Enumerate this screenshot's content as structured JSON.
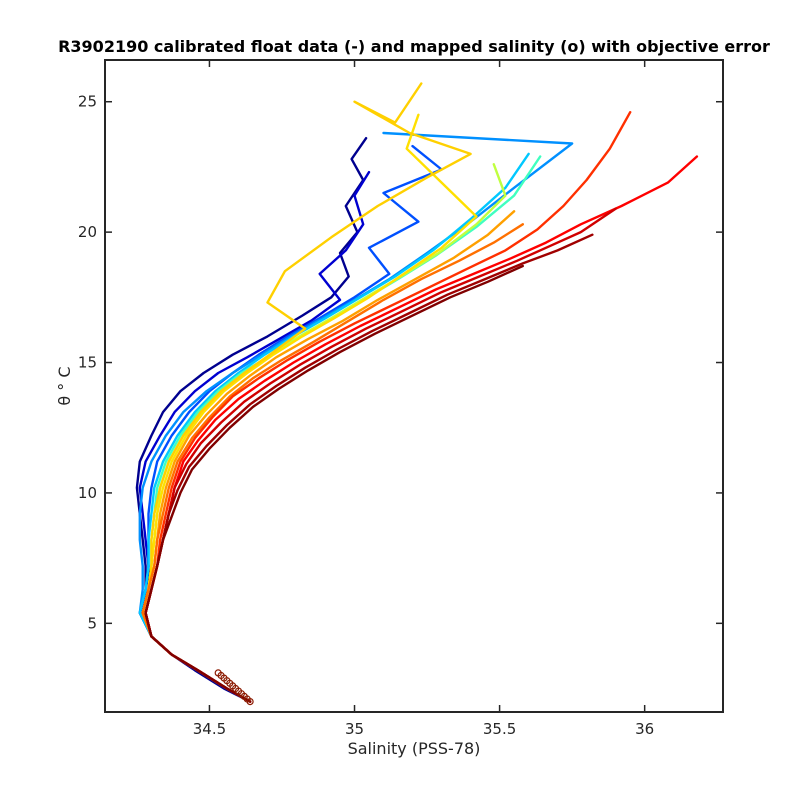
{
  "chart_data": {
    "type": "line",
    "title": "R3902190 calibrated float data (-) and mapped salinity (o) with objective error",
    "xlabel": "Salinity (PSS-78)",
    "ylabel": "θ ° C",
    "xlim": [
      34.14,
      36.27
    ],
    "ylim": [
      1.6,
      26.6
    ],
    "xticks": [
      34.5,
      35,
      35.5,
      36
    ],
    "xtick_labels": [
      "34.5",
      "35",
      "35.5",
      "36"
    ],
    "yticks": [
      5,
      10,
      15,
      20,
      25
    ],
    "ytick_labels": [
      "5",
      "10",
      "15",
      "20",
      "25"
    ],
    "grid": false,
    "legend": "none",
    "colormap": "jet (cycle number: blue = early, red = late)",
    "series": [
      {
        "color": "#00008f",
        "x": [
          34.64,
          34.55,
          34.45,
          34.37,
          34.3,
          34.26,
          34.28,
          34.28,
          34.27,
          34.26,
          34.25,
          34.26,
          34.3,
          34.34,
          34.4,
          34.48,
          34.58,
          34.7,
          34.82,
          34.92,
          34.98,
          34.95,
          35.01,
          34.97,
          35.03,
          34.99,
          35.04
        ],
        "y": [
          2,
          2.5,
          3.2,
          3.8,
          4.5,
          5.4,
          6.3,
          7.2,
          8.2,
          9.2,
          10.2,
          11.2,
          12.2,
          13.1,
          13.9,
          14.6,
          15.3,
          16,
          16.8,
          17.5,
          18.3,
          19.2,
          20,
          21,
          22,
          22.8,
          23.6
        ]
      },
      {
        "color": "#0000d0",
        "x": [
          34.64,
          34.56,
          34.46,
          34.37,
          34.3,
          34.26,
          34.29,
          34.29,
          34.28,
          34.27,
          34.26,
          34.28,
          34.33,
          34.38,
          34.45,
          34.53,
          34.63,
          34.74,
          34.85,
          34.95,
          34.88,
          34.97,
          35.03,
          35.0,
          35.05
        ],
        "y": [
          2,
          2.5,
          3.2,
          3.8,
          4.5,
          5.4,
          6.3,
          7.2,
          8.2,
          9.2,
          10.2,
          11.2,
          12.2,
          13.1,
          13.9,
          14.6,
          15.2,
          15.9,
          16.6,
          17.4,
          18.4,
          19.3,
          20.3,
          21.4,
          22.3
        ]
      },
      {
        "color": "#0050ff",
        "x": [
          34.64,
          34.56,
          34.46,
          34.37,
          34.3,
          34.26,
          34.28,
          34.29,
          34.29,
          34.29,
          34.3,
          34.32,
          34.37,
          34.43,
          34.5,
          34.58,
          34.67,
          34.77,
          34.88,
          35.0,
          35.12,
          35.05,
          35.22,
          35.1,
          35.3,
          35.2
        ],
        "y": [
          2,
          2.5,
          3.2,
          3.8,
          4.5,
          5.4,
          6.3,
          7.2,
          8.2,
          9.2,
          10.2,
          11.2,
          12.2,
          13.1,
          13.9,
          14.6,
          15.3,
          16,
          16.7,
          17.5,
          18.4,
          19.4,
          20.4,
          21.5,
          22.4,
          23.3
        ]
      },
      {
        "color": "#0090ff",
        "x": [
          34.64,
          34.56,
          34.46,
          34.37,
          34.3,
          34.26,
          34.27,
          34.27,
          34.26,
          34.26,
          34.27,
          34.3,
          34.35,
          34.41,
          34.49,
          34.58,
          34.68,
          34.78,
          34.89,
          35.0,
          35.12,
          35.25,
          35.4,
          35.55,
          35.75,
          35.1
        ],
        "y": [
          2,
          2.5,
          3.2,
          3.8,
          4.5,
          5.4,
          6.3,
          7.2,
          8.2,
          9.2,
          10.2,
          11.2,
          12.2,
          13.1,
          13.9,
          14.6,
          15.3,
          16,
          16.7,
          17.4,
          18.2,
          19.2,
          20.4,
          21.7,
          23.4,
          23.8
        ]
      },
      {
        "color": "#00c8ff",
        "x": [
          34.64,
          34.56,
          34.46,
          34.37,
          34.3,
          34.26,
          34.28,
          34.29,
          34.29,
          34.3,
          34.31,
          34.34,
          34.39,
          34.45,
          34.52,
          34.6,
          34.69,
          34.79,
          34.9,
          35.02,
          35.14,
          35.27,
          35.4,
          35.52,
          35.6
        ],
        "y": [
          2,
          2.5,
          3.2,
          3.8,
          4.5,
          5.4,
          6.3,
          7.2,
          8.2,
          9.2,
          10.2,
          11.2,
          12.2,
          13.1,
          13.9,
          14.6,
          15.3,
          16,
          16.7,
          17.5,
          18.3,
          19.3,
          20.5,
          21.7,
          23.0
        ]
      },
      {
        "color": "#40ffc0",
        "x": [
          34.64,
          34.56,
          34.46,
          34.37,
          34.3,
          34.27,
          34.29,
          34.3,
          34.3,
          34.31,
          34.32,
          34.35,
          34.4,
          34.46,
          34.53,
          34.61,
          34.7,
          34.8,
          34.91,
          35.03,
          35.15,
          35.28,
          35.42,
          35.55,
          35.64
        ],
        "y": [
          2,
          2.5,
          3.2,
          3.8,
          4.5,
          5.4,
          6.3,
          7.2,
          8.2,
          9.2,
          10.2,
          11.2,
          12.2,
          13.1,
          13.9,
          14.6,
          15.2,
          15.9,
          16.6,
          17.4,
          18.2,
          19.1,
          20.2,
          21.4,
          22.9
        ]
      },
      {
        "color": "#c0ff40",
        "x": [
          34.64,
          34.56,
          34.46,
          34.37,
          34.3,
          34.27,
          34.29,
          34.3,
          34.31,
          34.32,
          34.33,
          34.36,
          34.41,
          34.47,
          34.54,
          34.62,
          34.71,
          34.81,
          34.92,
          35.04,
          35.16,
          35.29,
          35.42,
          35.52,
          35.48
        ],
        "y": [
          2,
          2.5,
          3.2,
          3.8,
          4.5,
          5.4,
          6.3,
          7.2,
          8.2,
          9.2,
          10.2,
          11.2,
          12.2,
          13.1,
          13.9,
          14.6,
          15.3,
          16,
          16.7,
          17.5,
          18.3,
          19.2,
          20.3,
          21.4,
          22.6
        ]
      },
      {
        "color": "#ffe000",
        "x": [
          34.64,
          34.56,
          34.46,
          34.37,
          34.3,
          34.27,
          34.29,
          34.3,
          34.31,
          34.32,
          34.34,
          34.37,
          34.42,
          34.48,
          34.55,
          34.63,
          34.72,
          34.82,
          34.93,
          35.05,
          35.17,
          35.3,
          35.42,
          35.3,
          35.18,
          35.22
        ],
        "y": [
          2,
          2.5,
          3.2,
          3.8,
          4.5,
          5.4,
          6.3,
          7.2,
          8.2,
          9.2,
          10.2,
          11.2,
          12.2,
          13.1,
          13.9,
          14.6,
          15.3,
          16,
          16.7,
          17.5,
          18.4,
          19.4,
          20.6,
          21.9,
          23.2,
          24.5
        ]
      },
      {
        "color": "#ffd000",
        "x": [
          34.64,
          34.56,
          34.46,
          34.37,
          34.3,
          34.27,
          34.29,
          34.3,
          34.3,
          34.31,
          34.33,
          34.36,
          34.41,
          34.47,
          34.54,
          34.62,
          34.72,
          34.83,
          34.7,
          34.76,
          34.92,
          35.08,
          35.25,
          35.4,
          35.19,
          35.0,
          35.14,
          35.23
        ],
        "y": [
          2,
          2.5,
          3.2,
          3.8,
          4.5,
          5.4,
          6.3,
          7.2,
          8.2,
          9.2,
          10.2,
          11.2,
          12.2,
          13.1,
          13.9,
          14.6,
          15.4,
          16.3,
          17.3,
          18.5,
          19.8,
          21.0,
          22.1,
          23.0,
          23.8,
          25.0,
          24.2,
          25.7
        ]
      },
      {
        "color": "#ffa000",
        "x": [
          34.64,
          34.56,
          34.46,
          34.37,
          34.3,
          34.27,
          34.29,
          34.31,
          34.32,
          34.33,
          34.35,
          34.38,
          34.43,
          34.49,
          34.56,
          34.64,
          34.73,
          34.84,
          34.96,
          35.08,
          35.21,
          35.34,
          35.46,
          35.55
        ],
        "y": [
          2,
          2.5,
          3.2,
          3.8,
          4.5,
          5.4,
          6.3,
          7.2,
          8.2,
          9.2,
          10.2,
          11.2,
          12.2,
          13.0,
          13.8,
          14.5,
          15.2,
          15.9,
          16.6,
          17.4,
          18.2,
          19.0,
          19.9,
          20.8
        ]
      },
      {
        "color": "#ff7000",
        "x": [
          34.64,
          34.56,
          34.46,
          34.37,
          34.3,
          34.27,
          34.29,
          34.31,
          34.32,
          34.34,
          34.36,
          34.39,
          34.44,
          34.5,
          34.57,
          34.65,
          34.75,
          34.86,
          34.98,
          35.1,
          35.23,
          35.36,
          35.48,
          35.58
        ],
        "y": [
          2,
          2.5,
          3.2,
          3.8,
          4.5,
          5.4,
          6.3,
          7.2,
          8.2,
          9.2,
          10.2,
          11.2,
          12.1,
          12.9,
          13.7,
          14.4,
          15.1,
          15.8,
          16.6,
          17.4,
          18.2,
          18.9,
          19.6,
          20.3
        ]
      },
      {
        "color": "#ff3000",
        "x": [
          34.64,
          34.56,
          34.46,
          34.37,
          34.3,
          34.28,
          34.3,
          34.32,
          34.33,
          34.35,
          34.37,
          34.4,
          34.45,
          34.51,
          34.58,
          34.67,
          34.77,
          34.88,
          35.0,
          35.13,
          35.26,
          35.39,
          35.52,
          35.63,
          35.72,
          35.8,
          35.88,
          35.95
        ],
        "y": [
          2,
          2.5,
          3.2,
          3.8,
          4.5,
          5.4,
          6.3,
          7.2,
          8.2,
          9.2,
          10.2,
          11.2,
          12.1,
          12.9,
          13.7,
          14.4,
          15.1,
          15.8,
          16.5,
          17.2,
          17.9,
          18.6,
          19.3,
          20.1,
          21.0,
          22.0,
          23.2,
          24.6
        ]
      },
      {
        "color": "#ff0000",
        "x": [
          34.64,
          34.56,
          34.46,
          34.37,
          34.3,
          34.28,
          34.3,
          34.32,
          34.34,
          34.36,
          34.38,
          34.41,
          34.46,
          34.52,
          34.6,
          34.69,
          34.79,
          34.9,
          35.02,
          35.15,
          35.28,
          35.41,
          35.54,
          35.66,
          35.78,
          35.92,
          36.08,
          36.18
        ],
        "y": [
          2,
          2.5,
          3.2,
          3.8,
          4.5,
          5.4,
          6.3,
          7.2,
          8.2,
          9.2,
          10.2,
          11.2,
          12.0,
          12.8,
          13.6,
          14.3,
          15.0,
          15.7,
          16.4,
          17.1,
          17.8,
          18.4,
          19.0,
          19.6,
          20.3,
          21.0,
          21.9,
          22.9
        ]
      },
      {
        "color": "#d00000",
        "x": [
          34.64,
          34.56,
          34.46,
          34.37,
          34.3,
          34.28,
          34.3,
          34.32,
          34.34,
          34.36,
          34.38,
          34.42,
          34.47,
          34.54,
          34.62,
          34.71,
          34.81,
          34.92,
          35.04,
          35.17,
          35.3,
          35.43,
          35.56,
          35.68,
          35.78,
          35.9
        ],
        "y": [
          2,
          2.5,
          3.2,
          3.8,
          4.5,
          5.4,
          6.3,
          7.2,
          8.2,
          9.2,
          10.2,
          11.1,
          11.9,
          12.7,
          13.5,
          14.2,
          14.9,
          15.6,
          16.3,
          17.0,
          17.7,
          18.3,
          18.9,
          19.5,
          20.0,
          20.9
        ]
      },
      {
        "color": "#a00000",
        "x": [
          34.64,
          34.56,
          34.46,
          34.37,
          34.3,
          34.28,
          34.3,
          34.32,
          34.34,
          34.36,
          34.39,
          34.43,
          34.49,
          34.56,
          34.64,
          34.73,
          34.83,
          34.94,
          35.06,
          35.19,
          35.32,
          35.45,
          35.58,
          35.7,
          35.82
        ],
        "y": [
          2,
          2.5,
          3.2,
          3.8,
          4.5,
          5.4,
          6.3,
          7.2,
          8.2,
          9.2,
          10.1,
          11.0,
          11.8,
          12.6,
          13.4,
          14.1,
          14.8,
          15.5,
          16.2,
          16.9,
          17.6,
          18.2,
          18.8,
          19.3,
          19.9
        ]
      },
      {
        "color": "#800000",
        "x": [
          34.64,
          34.56,
          34.46,
          34.37,
          34.3,
          34.28,
          34.3,
          34.32,
          34.34,
          34.37,
          34.4,
          34.44,
          34.5,
          34.57,
          34.65,
          34.74,
          34.84,
          34.95,
          35.07,
          35.2,
          35.33,
          35.46,
          35.58
        ],
        "y": [
          2,
          2.5,
          3.2,
          3.8,
          4.5,
          5.4,
          6.3,
          7.2,
          8.2,
          9.1,
          10.0,
          10.9,
          11.7,
          12.5,
          13.3,
          14.0,
          14.7,
          15.4,
          16.1,
          16.8,
          17.5,
          18.1,
          18.7
        ]
      }
    ],
    "mapped_markers": {
      "color": "#8b1a00",
      "x": [
        34.64,
        34.63,
        34.62,
        34.61,
        34.6,
        34.59,
        34.58,
        34.57,
        34.56,
        34.55,
        34.54,
        34.53
      ],
      "y": [
        2.0,
        2.1,
        2.2,
        2.3,
        2.4,
        2.5,
        2.6,
        2.7,
        2.8,
        2.9,
        3.0,
        3.1
      ]
    }
  }
}
